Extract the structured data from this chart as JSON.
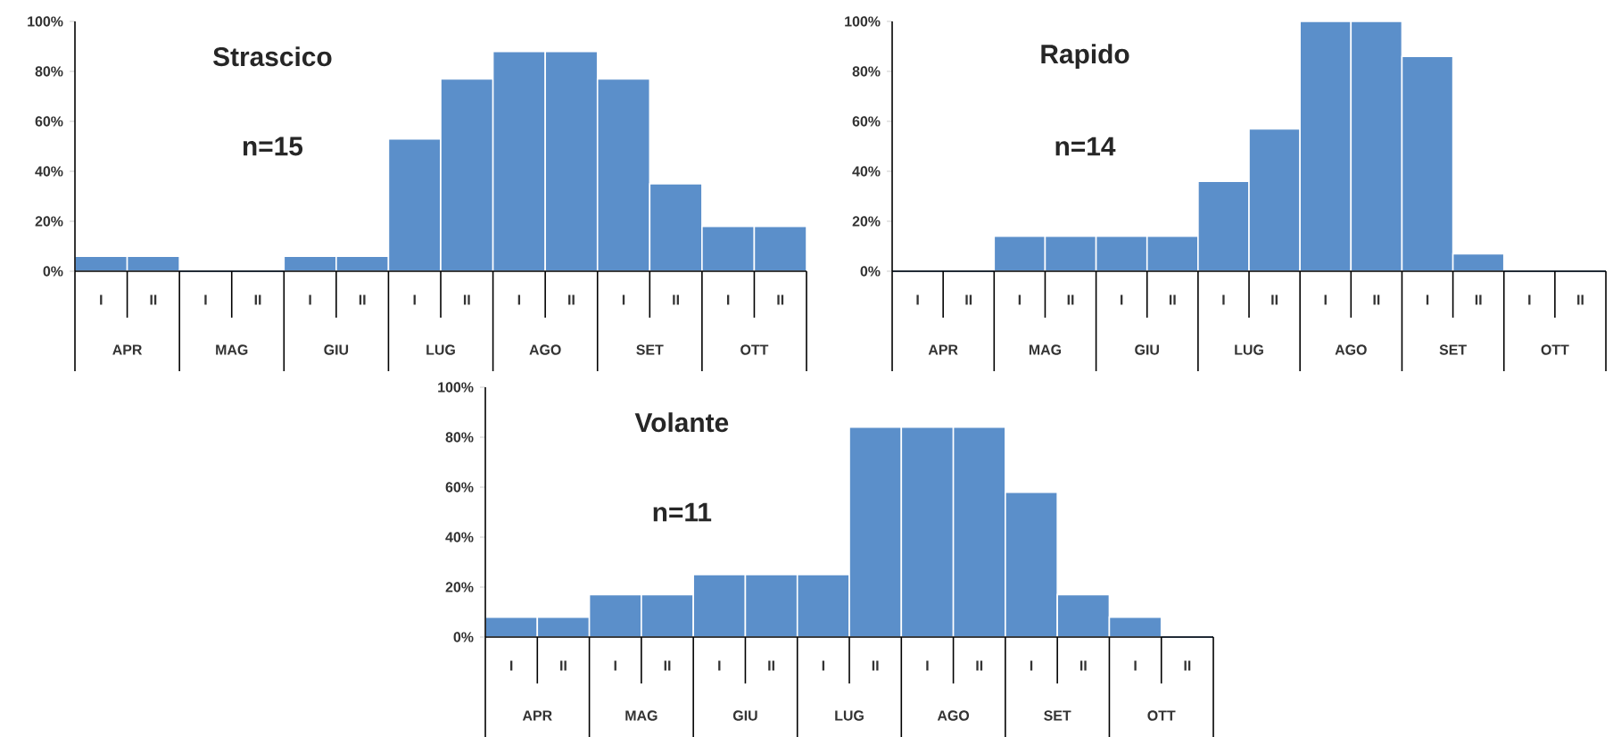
{
  "chart_data": [
    {
      "type": "bar",
      "title": "Strascico",
      "subtitle": "n=15",
      "categories": [
        "I",
        "II",
        "I",
        "II",
        "I",
        "II",
        "I",
        "II",
        "I",
        "II",
        "I",
        "II",
        "I",
        "II"
      ],
      "values": [
        6,
        6,
        0,
        0,
        6,
        6,
        53,
        77,
        88,
        88,
        77,
        35,
        18,
        18
      ],
      "color": "#5b8fca",
      "ylim": [
        0,
        100
      ],
      "yticks": [
        {
          "value": 0,
          "label": "0%"
        },
        {
          "value": 20,
          "label": "20%"
        },
        {
          "value": 40,
          "label": "40%"
        },
        {
          "value": 60,
          "label": "60%"
        },
        {
          "value": 80,
          "label": "80%"
        },
        {
          "value": 100,
          "label": "100%"
        }
      ],
      "annotations": [
        "APR",
        "MAG",
        "GIU",
        "LUG",
        "AGO",
        "SET",
        "OTT"
      ]
    },
    {
      "type": "bar",
      "title": "Rapido",
      "subtitle": "n=14",
      "categories": [
        "I",
        "II",
        "I",
        "II",
        "I",
        "II",
        "I",
        "II",
        "I",
        "II",
        "I",
        "II",
        "I",
        "II"
      ],
      "values": [
        0,
        0,
        14,
        14,
        14,
        14,
        36,
        57,
        100,
        100,
        86,
        7,
        0,
        0
      ],
      "color": "#5b8fca",
      "ylim": [
        0,
        100
      ],
      "yticks": [
        {
          "value": 0,
          "label": "0%"
        },
        {
          "value": 20,
          "label": "20%"
        },
        {
          "value": 40,
          "label": "40%"
        },
        {
          "value": 60,
          "label": "60%"
        },
        {
          "value": 80,
          "label": "80%"
        },
        {
          "value": 100,
          "label": "100%"
        }
      ],
      "annotations": [
        "APR",
        "MAG",
        "GIU",
        "LUG",
        "AGO",
        "SET",
        "OTT"
      ]
    },
    {
      "type": "bar",
      "title": "Volante",
      "subtitle": "n=11",
      "categories": [
        "I",
        "II",
        "I",
        "II",
        "I",
        "II",
        "I",
        "II",
        "I",
        "II",
        "I",
        "II",
        "I",
        "II"
      ],
      "values": [
        8,
        8,
        17,
        17,
        25,
        25,
        25,
        84,
        84,
        84,
        58,
        17,
        8,
        0
      ],
      "color": "#5b8fca",
      "ylim": [
        0,
        100
      ],
      "yticks": [
        {
          "value": 0,
          "label": "0%"
        },
        {
          "value": 20,
          "label": "20%"
        },
        {
          "value": 40,
          "label": "40%"
        },
        {
          "value": 60,
          "label": "60%"
        },
        {
          "value": 80,
          "label": "80%"
        },
        {
          "value": 100,
          "label": "100%"
        }
      ],
      "annotations": [
        "APR",
        "MAG",
        "GIU",
        "LUG",
        "AGO",
        "SET",
        "OTT"
      ]
    }
  ]
}
